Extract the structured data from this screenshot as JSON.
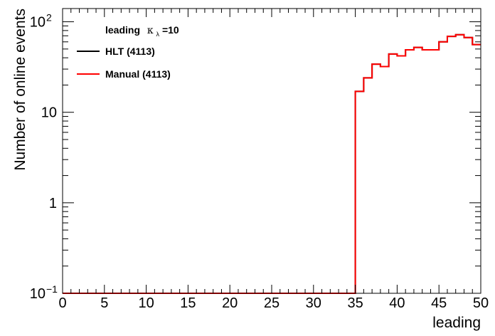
{
  "chart_data": {
    "type": "line",
    "style": "step-histogram",
    "title": "",
    "xlabel": "leading",
    "ylabel": "Number of online events",
    "xlim": [
      0,
      50
    ],
    "ylim": [
      0.1,
      140
    ],
    "yscale": "log",
    "grid": false,
    "legend_placement": "top-left",
    "legend_header": {
      "text": "leading",
      "symbol_base": "κ",
      "symbol_sub": "λ",
      "symbol_value": "=10"
    },
    "x_ticks": [
      {
        "value": 0,
        "label": "0"
      },
      {
        "value": 5,
        "label": "5"
      },
      {
        "value": 10,
        "label": "10"
      },
      {
        "value": 15,
        "label": "15"
      },
      {
        "value": 20,
        "label": "20"
      },
      {
        "value": 25,
        "label": "25"
      },
      {
        "value": 30,
        "label": "30"
      },
      {
        "value": 35,
        "label": "35"
      },
      {
        "value": 40,
        "label": "40"
      },
      {
        "value": 45,
        "label": "45"
      },
      {
        "value": 50,
        "label": "50"
      }
    ],
    "y_ticks": [
      {
        "value": 0.1,
        "base": "10",
        "exp": "−1"
      },
      {
        "value": 1,
        "base": "1",
        "exp": ""
      },
      {
        "value": 10,
        "base": "10",
        "exp": ""
      },
      {
        "value": 100,
        "base": "10",
        "exp": "2"
      }
    ],
    "bin_edges": [
      35,
      36,
      37,
      38,
      39,
      40,
      41,
      42,
      43,
      44,
      45,
      46,
      47,
      48,
      49,
      50
    ],
    "series": [
      {
        "name": "HLT (4113)",
        "color": "#000000",
        "baseline": 0.1,
        "values": [
          17,
          24,
          34,
          32,
          44,
          42,
          49,
          52,
          49,
          49,
          60,
          69,
          72,
          67,
          56
        ]
      },
      {
        "name": "Manual (4113)",
        "color": "#ff0000",
        "baseline": 0.1,
        "values": [
          17,
          24,
          34,
          32,
          44,
          42,
          49,
          52,
          49,
          49,
          60,
          69,
          72,
          67,
          56
        ]
      }
    ]
  }
}
